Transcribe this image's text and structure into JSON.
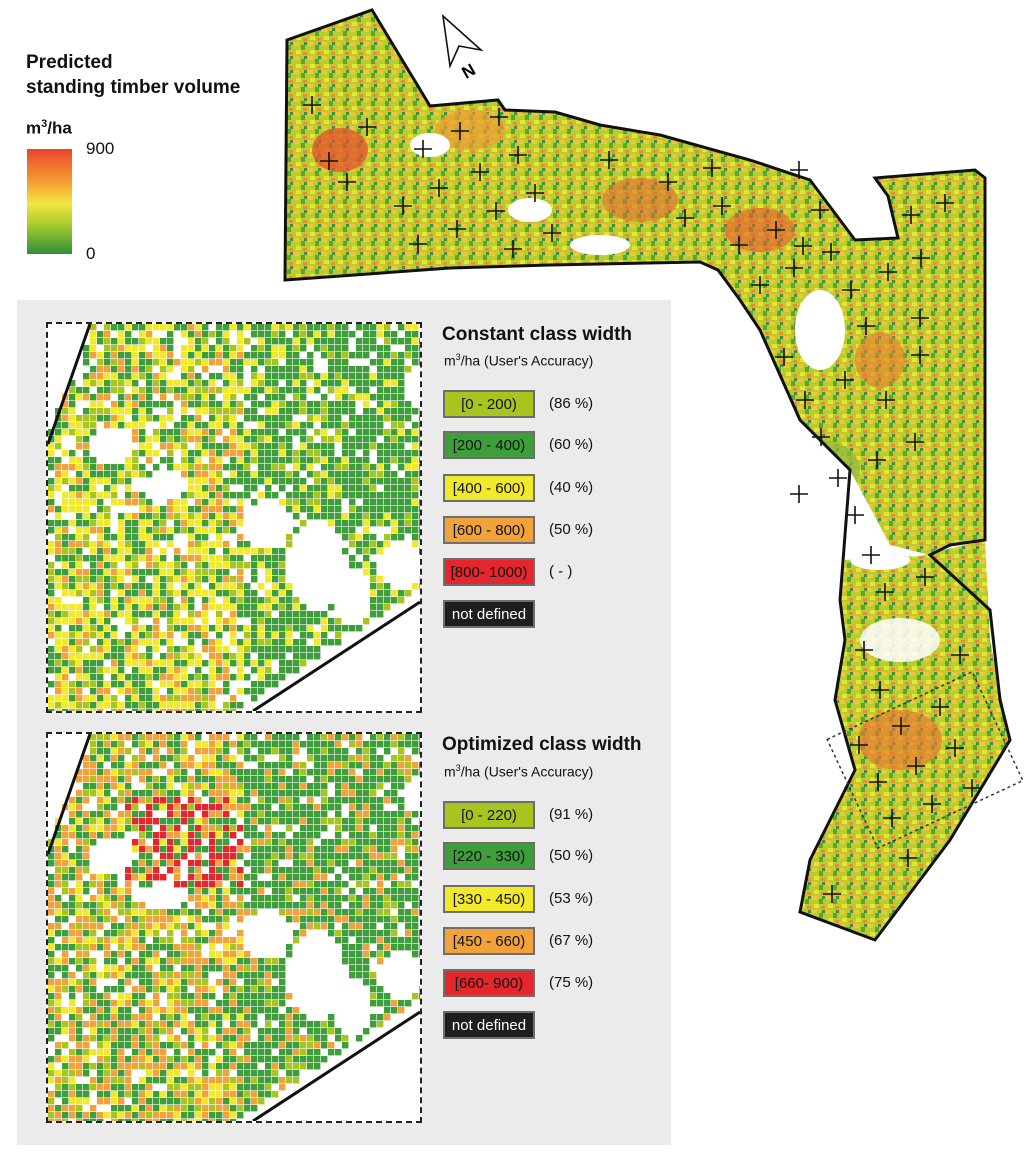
{
  "figure": {
    "title_line1": "Predicted",
    "title_line2": "standing timber volume",
    "unit_prefix": "m",
    "unit_exp": "3",
    "unit_suffix": "/ha",
    "ramp_max": "900",
    "ramp_min": "0",
    "ramp_colors": [
      "#e8452d",
      "#f5a032",
      "#f1e640",
      "#a9cb2c",
      "#2f8f3e"
    ],
    "north_label": "N"
  },
  "legends": [
    {
      "title": "Constant class width",
      "subtitle_prefix": "m",
      "subtitle_exp": "3",
      "subtitle_suffix": "/ha (User's Accuracy)",
      "classes": [
        {
          "label": "[0 - 200)",
          "accuracy": "(86 %)",
          "color": "#a8c51f"
        },
        {
          "label": "[200 - 400)",
          "accuracy": "(60 %)",
          "color": "#3e9f3a"
        },
        {
          "label": "[400 - 600)",
          "accuracy": "(40 %)",
          "color": "#f2e92a"
        },
        {
          "label": "[600 - 800)",
          "accuracy": "(50 %)",
          "color": "#f2a23a"
        },
        {
          "label": "[800- 1000)",
          "accuracy": "(   -   )",
          "color": "#e5262d"
        },
        {
          "label": "not defined",
          "accuracy": "",
          "color": "#1e1e1e"
        }
      ]
    },
    {
      "title": "Optimized class width",
      "subtitle_prefix": "m",
      "subtitle_exp": "3",
      "subtitle_suffix": "/ha (User's Accuracy)",
      "classes": [
        {
          "label": "[0 - 220)",
          "accuracy": "(91 %)",
          "color": "#a8c51f"
        },
        {
          "label": "[220 - 330)",
          "accuracy": "(50 %)",
          "color": "#3e9f3a"
        },
        {
          "label": "[330 - 450)",
          "accuracy": "(53 %)",
          "color": "#f2e92a"
        },
        {
          "label": "[450 - 660)",
          "accuracy": "(67 %)",
          "color": "#f2a23a"
        },
        {
          "label": "[660- 900)",
          "accuracy": "(75 %)",
          "color": "#e5262d"
        },
        {
          "label": "not defined",
          "accuracy": "",
          "color": "#1e1e1e"
        }
      ]
    }
  ]
}
